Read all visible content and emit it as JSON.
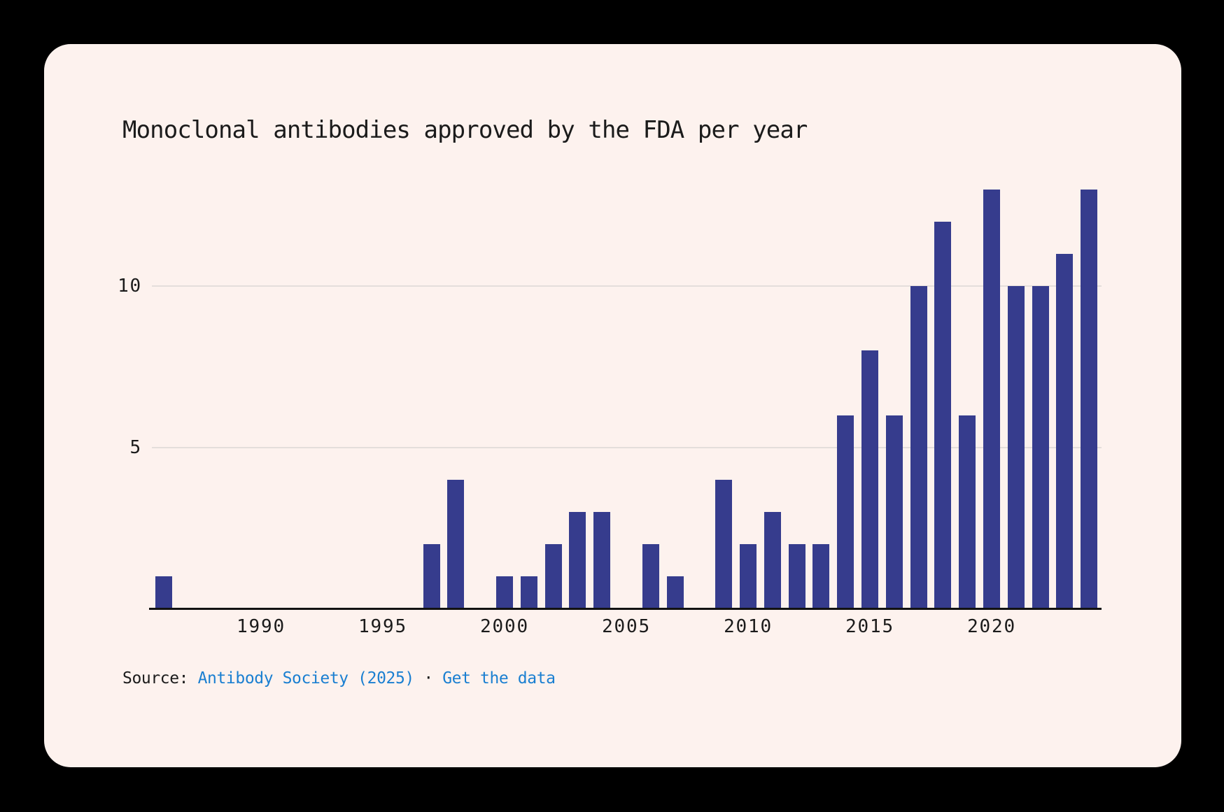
{
  "title": "Monoclonal antibodies approved by the FDA per year",
  "source": {
    "prefix": "Source: ",
    "source_link": "Antibody Society (2025)",
    "separator": " · ",
    "data_link": "Get the data"
  },
  "colors": {
    "page_background": "#000000",
    "card_background": "#FDF2EE",
    "bar": "#363C8D",
    "grid": "#E4DEDB",
    "axis": "#121212",
    "text": "#1B1B1B",
    "link": "#1A7FD1"
  },
  "chart_data": {
    "type": "bar",
    "title": "Monoclonal antibodies approved by the FDA per year",
    "xlabel": "",
    "ylabel": "",
    "x": [
      1986,
      1987,
      1988,
      1989,
      1990,
      1991,
      1992,
      1993,
      1994,
      1995,
      1996,
      1997,
      1998,
      1999,
      2000,
      2001,
      2002,
      2003,
      2004,
      2005,
      2006,
      2007,
      2008,
      2009,
      2010,
      2011,
      2012,
      2013,
      2014,
      2015,
      2016,
      2017,
      2018,
      2019,
      2020,
      2021,
      2022,
      2023,
      2024
    ],
    "values": [
      1,
      0,
      0,
      0,
      0,
      0,
      0,
      0,
      0,
      0,
      0,
      2,
      4,
      0,
      1,
      1,
      2,
      3,
      3,
      0,
      2,
      1,
      0,
      4,
      2,
      3,
      2,
      2,
      6,
      8,
      6,
      10,
      12,
      6,
      13,
      10,
      10,
      11,
      13
    ],
    "ylim": [
      0,
      13
    ],
    "yticks": [
      5,
      10
    ],
    "xticks": [
      1990,
      1995,
      2000,
      2005,
      2010,
      2015,
      2020
    ],
    "grid": "horizontal",
    "legend": "none"
  }
}
